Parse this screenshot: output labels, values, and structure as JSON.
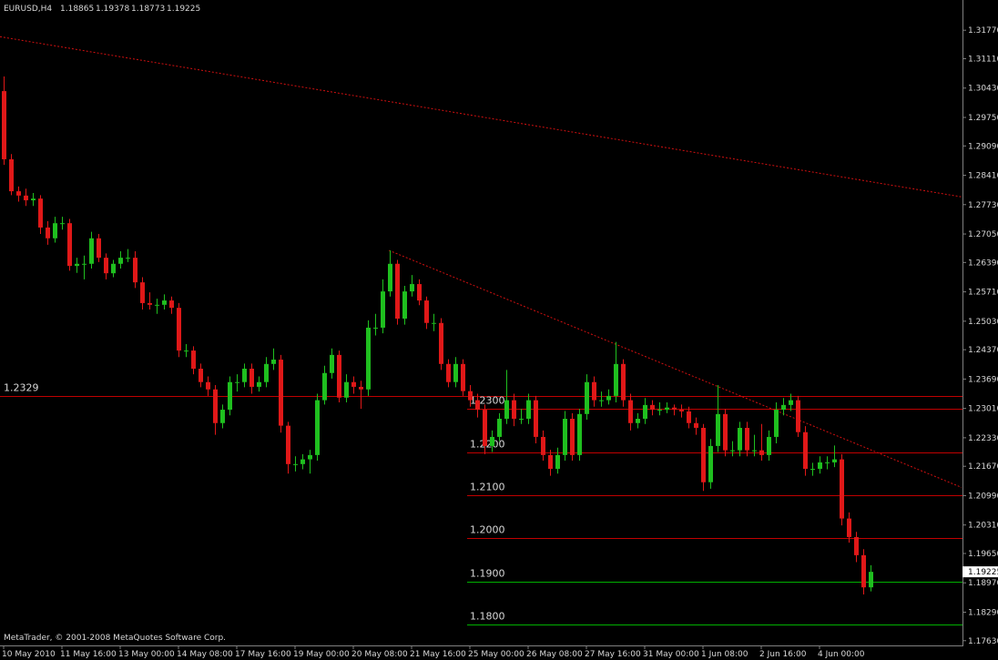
{
  "chart_data": {
    "type": "candlestick",
    "symbol": "EURUSD,H4",
    "footer": "MetaTrader, © 2001-2008 MetaQuotes Software Corp.",
    "up_color": "#1fbf1f",
    "down_color": "#e01818",
    "ylim": [
      1.1752,
      1.3247
    ],
    "yticks": [
      {
        "value": 1.3177,
        "label": "1.31770"
      },
      {
        "value": 1.3111,
        "label": "1.31110"
      },
      {
        "value": 1.3043,
        "label": "1.30430"
      },
      {
        "value": 1.2975,
        "label": "1.29750"
      },
      {
        "value": 1.2909,
        "label": "1.29090"
      },
      {
        "value": 1.2841,
        "label": "1.28410"
      },
      {
        "value": 1.2773,
        "label": "1.27730"
      },
      {
        "value": 1.2705,
        "label": "1.27050"
      },
      {
        "value": 1.2639,
        "label": "1.26390"
      },
      {
        "value": 1.2571,
        "label": "1.25710"
      },
      {
        "value": 1.2503,
        "label": "1.25030"
      },
      {
        "value": 1.2437,
        "label": "1.24370"
      },
      {
        "value": 1.2369,
        "label": "1.23690"
      },
      {
        "value": 1.2301,
        "label": "1.23010"
      },
      {
        "value": 1.2233,
        "label": "1.22330"
      },
      {
        "value": 1.2167,
        "label": "1.21670"
      },
      {
        "value": 1.2099,
        "label": "1.20990"
      },
      {
        "value": 1.2031,
        "label": "1.20310"
      },
      {
        "value": 1.1965,
        "label": "1.19650"
      },
      {
        "value": 1.1897,
        "label": "1.18970"
      },
      {
        "value": 1.1829,
        "label": "1.18290"
      },
      {
        "value": 1.1763,
        "label": "1.17630"
      }
    ],
    "current_price": 1.19225,
    "price_line": {
      "value": 1.2329,
      "color": "#c00000"
    },
    "levels": [
      {
        "value": 1.23,
        "label": "1.2300",
        "color": "#c00000"
      },
      {
        "value": 1.22,
        "label": "1.2200",
        "color": "#c00000"
      },
      {
        "value": 1.21,
        "label": "1.2100",
        "color": "#c00000"
      },
      {
        "value": 1.2,
        "label": "1.2000",
        "color": "#c00000"
      },
      {
        "value": 1.19,
        "label": "1.1900",
        "color": "#00b000"
      },
      {
        "value": 1.18,
        "label": "1.1800",
        "color": "#00b000"
      }
    ],
    "trendlines": [
      {
        "x": [
          -0.5,
          131.5
        ],
        "y": [
          1.3162,
          1.2791
        ],
        "color": "#d01010"
      },
      {
        "x": [
          52.9,
          131.5
        ],
        "y": [
          1.2667,
          1.2118
        ],
        "color": "#d01010"
      }
    ],
    "categories": [
      "10 May 2010",
      null,
      null,
      null,
      null,
      null,
      null,
      null,
      "11 May 16:00",
      null,
      null,
      null,
      null,
      null,
      null,
      null,
      "13 May 00:00",
      null,
      null,
      null,
      null,
      null,
      null,
      null,
      "14 May 08:00",
      null,
      null,
      null,
      null,
      null,
      null,
      null,
      "17 May 16:00",
      null,
      null,
      null,
      null,
      null,
      null,
      null,
      "19 May 00:00",
      null,
      null,
      null,
      null,
      null,
      null,
      null,
      "20 May 08:00",
      null,
      null,
      null,
      null,
      null,
      null,
      null,
      "21 May 16:00",
      null,
      null,
      null,
      null,
      null,
      null,
      null,
      "25 May 00:00",
      null,
      null,
      null,
      null,
      null,
      null,
      null,
      "26 May 08:00",
      null,
      null,
      null,
      null,
      null,
      null,
      null,
      "27 May 16:00",
      null,
      null,
      null,
      null,
      null,
      null,
      null,
      "31 May 00:00",
      null,
      null,
      null,
      null,
      null,
      null,
      null,
      "1 Jun 08:00",
      null,
      null,
      null,
      null,
      null,
      null,
      null,
      "2 Jun 16:00",
      null,
      null,
      null,
      null,
      null,
      null,
      null,
      "4 Jun 00:00",
      null,
      null,
      null,
      null,
      null,
      null,
      null
    ],
    "ohlc": [
      [
        1.3036,
        1.307,
        1.2865,
        1.2878
      ],
      [
        1.2878,
        1.289,
        1.2795,
        1.2804
      ],
      [
        1.2804,
        1.2815,
        1.278,
        1.2794
      ],
      [
        1.2794,
        1.281,
        1.277,
        1.2783
      ],
      [
        1.2783,
        1.28,
        1.277,
        1.2787
      ],
      [
        1.2787,
        1.2795,
        1.2705,
        1.272
      ],
      [
        1.272,
        1.2735,
        1.268,
        1.2695
      ],
      [
        1.2695,
        1.2745,
        1.2685,
        1.273
      ],
      [
        1.273,
        1.2745,
        1.2715,
        1.273
      ],
      [
        1.273,
        1.274,
        1.262,
        1.2631
      ],
      [
        1.2631,
        1.265,
        1.2615,
        1.2636
      ],
      [
        1.2636,
        1.2655,
        1.26,
        1.2636
      ],
      [
        1.2636,
        1.271,
        1.2625,
        1.2695
      ],
      [
        1.2695,
        1.2705,
        1.264,
        1.265
      ],
      [
        1.265,
        1.266,
        1.26,
        1.2614
      ],
      [
        1.2614,
        1.2645,
        1.2605,
        1.2636
      ],
      [
        1.2636,
        1.2665,
        1.2625,
        1.265
      ],
      [
        1.265,
        1.267,
        1.264,
        1.265
      ],
      [
        1.265,
        1.2665,
        1.258,
        1.2593
      ],
      [
        1.2593,
        1.2605,
        1.253,
        1.2545
      ],
      [
        1.2545,
        1.257,
        1.253,
        1.2541
      ],
      [
        1.2541,
        1.2555,
        1.252,
        1.2541
      ],
      [
        1.2541,
        1.2565,
        1.253,
        1.2551
      ],
      [
        1.2551,
        1.256,
        1.252,
        1.2534
      ],
      [
        1.2534,
        1.2545,
        1.242,
        1.2435
      ],
      [
        1.2435,
        1.245,
        1.242,
        1.2435
      ],
      [
        1.2435,
        1.2445,
        1.238,
        1.2393
      ],
      [
        1.2393,
        1.2405,
        1.235,
        1.2362
      ],
      [
        1.2362,
        1.2375,
        1.233,
        1.2345
      ],
      [
        1.2345,
        1.2355,
        1.224,
        1.2267
      ],
      [
        1.2267,
        1.231,
        1.2255,
        1.2298
      ],
      [
        1.2298,
        1.2375,
        1.2285,
        1.2362
      ],
      [
        1.2362,
        1.238,
        1.234,
        1.2362
      ],
      [
        1.2362,
        1.2405,
        1.235,
        1.2393
      ],
      [
        1.2393,
        1.2405,
        1.2335,
        1.2351
      ],
      [
        1.2351,
        1.2375,
        1.234,
        1.2362
      ],
      [
        1.2362,
        1.242,
        1.235,
        1.2404
      ],
      [
        1.2404,
        1.244,
        1.239,
        1.2414
      ],
      [
        1.2414,
        1.2425,
        1.2245,
        1.2261
      ],
      [
        1.2261,
        1.227,
        1.215,
        1.2172
      ],
      [
        1.2172,
        1.219,
        1.2155,
        1.2172
      ],
      [
        1.2172,
        1.2195,
        1.216,
        1.2183
      ],
      [
        1.2183,
        1.2205,
        1.215,
        1.2193
      ],
      [
        1.2193,
        1.2335,
        1.218,
        1.232
      ],
      [
        1.232,
        1.24,
        1.231,
        1.2383
      ],
      [
        1.2383,
        1.244,
        1.237,
        1.2425
      ],
      [
        1.2425,
        1.2435,
        1.2315,
        1.2326
      ],
      [
        1.2326,
        1.238,
        1.2315,
        1.2362
      ],
      [
        1.2362,
        1.2375,
        1.2335,
        1.2351
      ],
      [
        1.2351,
        1.2365,
        1.23,
        1.2345
      ],
      [
        1.2345,
        1.2505,
        1.233,
        1.2488
      ],
      [
        1.2488,
        1.252,
        1.247,
        1.2488
      ],
      [
        1.2488,
        1.26,
        1.2475,
        1.2572
      ],
      [
        1.2572,
        1.2667,
        1.256,
        1.2636
      ],
      [
        1.2636,
        1.2645,
        1.2495,
        1.2509
      ],
      [
        1.2509,
        1.2585,
        1.2495,
        1.2572
      ],
      [
        1.2572,
        1.261,
        1.256,
        1.2589
      ],
      [
        1.2589,
        1.26,
        1.254,
        1.2551
      ],
      [
        1.2551,
        1.256,
        1.2485,
        1.2499
      ],
      [
        1.2499,
        1.252,
        1.248,
        1.2499
      ],
      [
        1.2499,
        1.251,
        1.239,
        1.2404
      ],
      [
        1.2404,
        1.2415,
        1.235,
        1.2362
      ],
      [
        1.2362,
        1.242,
        1.235,
        1.2404
      ],
      [
        1.2404,
        1.2415,
        1.233,
        1.2341
      ],
      [
        1.2341,
        1.2355,
        1.2305,
        1.232
      ],
      [
        1.232,
        1.2335,
        1.228,
        1.2298
      ],
      [
        1.2298,
        1.231,
        1.2195,
        1.2214
      ],
      [
        1.2214,
        1.225,
        1.22,
        1.2235
      ],
      [
        1.2235,
        1.229,
        1.2225,
        1.2277
      ],
      [
        1.2277,
        1.239,
        1.2265,
        1.232
      ],
      [
        1.232,
        1.2335,
        1.226,
        1.2277
      ],
      [
        1.2277,
        1.23,
        1.2265,
        1.2277
      ],
      [
        1.2277,
        1.2335,
        1.2265,
        1.232
      ],
      [
        1.232,
        1.233,
        1.222,
        1.2235
      ],
      [
        1.2235,
        1.225,
        1.218,
        1.2193
      ],
      [
        1.2193,
        1.2205,
        1.2145,
        1.2161
      ],
      [
        1.2161,
        1.221,
        1.215,
        1.2193
      ],
      [
        1.2193,
        1.2295,
        1.218,
        1.2277
      ],
      [
        1.2277,
        1.229,
        1.218,
        1.2193
      ],
      [
        1.2193,
        1.23,
        1.218,
        1.2288
      ],
      [
        1.2288,
        1.238,
        1.2275,
        1.2362
      ],
      [
        1.2362,
        1.2375,
        1.2305,
        1.232
      ],
      [
        1.232,
        1.234,
        1.2305,
        1.232
      ],
      [
        1.232,
        1.2345,
        1.231,
        1.233
      ],
      [
        1.233,
        1.2455,
        1.2315,
        1.2404
      ],
      [
        1.2404,
        1.2415,
        1.2305,
        1.232
      ],
      [
        1.232,
        1.2335,
        1.225,
        1.2267
      ],
      [
        1.2267,
        1.229,
        1.2255,
        1.2277
      ],
      [
        1.2277,
        1.2325,
        1.2265,
        1.2309
      ],
      [
        1.2309,
        1.232,
        1.2285,
        1.2298
      ],
      [
        1.2298,
        1.2315,
        1.2285,
        1.2298
      ],
      [
        1.2298,
        1.2315,
        1.229,
        1.2303
      ],
      [
        1.2303,
        1.231,
        1.2285,
        1.2298
      ],
      [
        1.2298,
        1.231,
        1.228,
        1.2294
      ],
      [
        1.2294,
        1.2305,
        1.2255,
        1.2267
      ],
      [
        1.2267,
        1.228,
        1.224,
        1.2256
      ],
      [
        1.2256,
        1.2265,
        1.211,
        1.213
      ],
      [
        1.213,
        1.223,
        1.2115,
        1.2214
      ],
      [
        1.2214,
        1.2355,
        1.22,
        1.2288
      ],
      [
        1.2288,
        1.23,
        1.219,
        1.2204
      ],
      [
        1.2204,
        1.2225,
        1.219,
        1.2204
      ],
      [
        1.2204,
        1.227,
        1.219,
        1.2256
      ],
      [
        1.2256,
        1.227,
        1.219,
        1.2204
      ],
      [
        1.2204,
        1.224,
        1.219,
        1.2204
      ],
      [
        1.2204,
        1.2265,
        1.218,
        1.2193
      ],
      [
        1.2193,
        1.225,
        1.218,
        1.2235
      ],
      [
        1.2235,
        1.2315,
        1.222,
        1.2298
      ],
      [
        1.2298,
        1.2325,
        1.2285,
        1.2309
      ],
      [
        1.2309,
        1.2335,
        1.2295,
        1.232
      ],
      [
        1.232,
        1.233,
        1.2235,
        1.2246
      ],
      [
        1.2246,
        1.226,
        1.2145,
        1.2161
      ],
      [
        1.2161,
        1.2175,
        1.2145,
        1.2161
      ],
      [
        1.2161,
        1.219,
        1.215,
        1.2176
      ],
      [
        1.2176,
        1.219,
        1.216,
        1.2176
      ],
      [
        1.2176,
        1.2215,
        1.2165,
        1.2183
      ],
      [
        1.2183,
        1.2195,
        1.203,
        1.2046
      ],
      [
        1.2046,
        1.206,
        1.199,
        1.2003
      ],
      [
        1.2003,
        1.2015,
        1.1945,
        1.1961
      ],
      [
        1.1961,
        1.1975,
        1.187,
        1.18865
      ],
      [
        1.18865,
        1.19378,
        1.18773,
        1.19225
      ]
    ]
  }
}
